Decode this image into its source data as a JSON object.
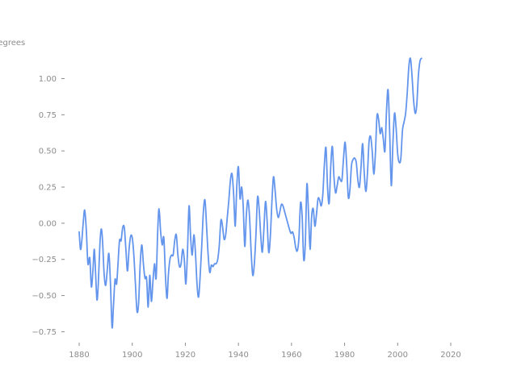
{
  "chart_data": {
    "type": "line",
    "title": "",
    "xlabel": "",
    "ylabel": "degrees",
    "xlim": [
      1873,
      2027
    ],
    "ylim": [
      -0.82,
      1.22
    ],
    "grid": false,
    "x_ticks": [
      1880,
      1900,
      1920,
      1940,
      1960,
      1980,
      2000,
      2020
    ],
    "y_ticks": [
      -0.75,
      -0.5,
      -0.25,
      0.0,
      0.25,
      0.5,
      0.75,
      1.0
    ],
    "y_tick_labels": [
      "−0.75",
      "−0.50",
      "−0.25",
      "0.00",
      "0.25",
      "0.50",
      "0.75",
      "1.00"
    ],
    "colors": {
      "line": "#6495ed",
      "axis": "#8c8c8c"
    },
    "series": [
      {
        "values": [
          [
            1880.0,
            -0.06
          ],
          [
            1880.5,
            -0.18
          ],
          [
            1881.0,
            -0.12
          ],
          [
            1881.6,
            0.02
          ],
          [
            1882.1,
            0.09
          ],
          [
            1882.7,
            -0.05
          ],
          [
            1883.3,
            -0.28
          ],
          [
            1884.0,
            -0.24
          ],
          [
            1884.6,
            -0.44
          ],
          [
            1885.2,
            -0.32
          ],
          [
            1885.7,
            -0.18
          ],
          [
            1886.2,
            -0.35
          ],
          [
            1886.7,
            -0.53
          ],
          [
            1887.2,
            -0.42
          ],
          [
            1887.8,
            -0.15
          ],
          [
            1888.3,
            -0.04
          ],
          [
            1888.8,
            -0.12
          ],
          [
            1889.4,
            -0.35
          ],
          [
            1890.0,
            -0.43
          ],
          [
            1890.6,
            -0.32
          ],
          [
            1891.2,
            -0.21
          ],
          [
            1891.8,
            -0.42
          ],
          [
            1892.4,
            -0.72
          ],
          [
            1892.9,
            -0.58
          ],
          [
            1893.5,
            -0.39
          ],
          [
            1894.1,
            -0.42
          ],
          [
            1894.6,
            -0.29
          ],
          [
            1895.2,
            -0.12
          ],
          [
            1895.8,
            -0.12
          ],
          [
            1896.4,
            -0.03
          ],
          [
            1897.0,
            -0.03
          ],
          [
            1897.6,
            -0.18
          ],
          [
            1898.2,
            -0.33
          ],
          [
            1898.8,
            -0.18
          ],
          [
            1899.4,
            -0.09
          ],
          [
            1900.0,
            -0.1
          ],
          [
            1900.6,
            -0.22
          ],
          [
            1901.2,
            -0.42
          ],
          [
            1901.8,
            -0.61
          ],
          [
            1902.4,
            -0.55
          ],
          [
            1903.0,
            -0.28
          ],
          [
            1903.6,
            -0.15
          ],
          [
            1904.2,
            -0.28
          ],
          [
            1904.8,
            -0.38
          ],
          [
            1905.4,
            -0.38
          ],
          [
            1906.0,
            -0.58
          ],
          [
            1906.6,
            -0.36
          ],
          [
            1907.2,
            -0.54
          ],
          [
            1907.8,
            -0.4
          ],
          [
            1908.4,
            -0.28
          ],
          [
            1909.0,
            -0.38
          ],
          [
            1909.6,
            -0.05
          ],
          [
            1910.1,
            0.1
          ],
          [
            1910.7,
            -0.06
          ],
          [
            1911.3,
            -0.15
          ],
          [
            1911.9,
            -0.1
          ],
          [
            1912.5,
            -0.36
          ],
          [
            1913.1,
            -0.52
          ],
          [
            1913.6,
            -0.36
          ],
          [
            1914.2,
            -0.25
          ],
          [
            1914.8,
            -0.22
          ],
          [
            1915.4,
            -0.22
          ],
          [
            1916.0,
            -0.12
          ],
          [
            1916.6,
            -0.08
          ],
          [
            1917.2,
            -0.22
          ],
          [
            1917.8,
            -0.3
          ],
          [
            1918.4,
            -0.28
          ],
          [
            1919.0,
            -0.18
          ],
          [
            1919.6,
            -0.25
          ],
          [
            1920.2,
            -0.42
          ],
          [
            1920.8,
            -0.2
          ],
          [
            1921.4,
            0.12
          ],
          [
            1922.0,
            -0.1
          ],
          [
            1922.6,
            -0.22
          ],
          [
            1923.2,
            -0.08
          ],
          [
            1923.8,
            -0.2
          ],
          [
            1924.4,
            -0.42
          ],
          [
            1925.0,
            -0.51
          ],
          [
            1925.6,
            -0.36
          ],
          [
            1926.2,
            -0.15
          ],
          [
            1926.8,
            0.08
          ],
          [
            1927.4,
            0.16
          ],
          [
            1928.0,
            -0.02
          ],
          [
            1928.6,
            -0.22
          ],
          [
            1929.2,
            -0.34
          ],
          [
            1929.8,
            -0.29
          ],
          [
            1930.4,
            -0.3
          ],
          [
            1931.0,
            -0.28
          ],
          [
            1931.6,
            -0.28
          ],
          [
            1932.2,
            -0.25
          ],
          [
            1932.8,
            -0.15
          ],
          [
            1933.4,
            0.02
          ],
          [
            1934.0,
            -0.02
          ],
          [
            1934.6,
            -0.11
          ],
          [
            1935.2,
            -0.08
          ],
          [
            1935.8,
            0.04
          ],
          [
            1936.4,
            0.16
          ],
          [
            1937.0,
            0.3
          ],
          [
            1937.6,
            0.34
          ],
          [
            1938.2,
            0.2
          ],
          [
            1938.8,
            -0.02
          ],
          [
            1939.4,
            0.26
          ],
          [
            1940.0,
            0.39
          ],
          [
            1940.6,
            0.17
          ],
          [
            1941.2,
            0.25
          ],
          [
            1941.8,
            0.12
          ],
          [
            1942.4,
            -0.16
          ],
          [
            1943.0,
            0.06
          ],
          [
            1943.6,
            0.16
          ],
          [
            1944.2,
            0.04
          ],
          [
            1944.8,
            -0.2
          ],
          [
            1945.4,
            -0.36
          ],
          [
            1946.0,
            -0.28
          ],
          [
            1946.6,
            -0.08
          ],
          [
            1947.2,
            0.18
          ],
          [
            1947.8,
            0.1
          ],
          [
            1948.4,
            -0.08
          ],
          [
            1949.0,
            -0.2
          ],
          [
            1949.6,
            -0.04
          ],
          [
            1950.2,
            0.15
          ],
          [
            1950.8,
            0.02
          ],
          [
            1951.4,
            -0.2
          ],
          [
            1952.0,
            -0.1
          ],
          [
            1952.6,
            0.14
          ],
          [
            1953.2,
            0.32
          ],
          [
            1953.8,
            0.23
          ],
          [
            1954.4,
            0.1
          ],
          [
            1955.0,
            0.04
          ],
          [
            1955.6,
            0.08
          ],
          [
            1956.2,
            0.13
          ],
          [
            1956.8,
            0.12
          ],
          [
            1957.4,
            0.08
          ],
          [
            1958.0,
            0.04
          ],
          [
            1958.6,
            0.0
          ],
          [
            1959.2,
            -0.04
          ],
          [
            1959.8,
            -0.07
          ],
          [
            1960.4,
            -0.06
          ],
          [
            1961.0,
            -0.1
          ],
          [
            1961.6,
            -0.17
          ],
          [
            1962.2,
            -0.19
          ],
          [
            1962.8,
            -0.1
          ],
          [
            1963.4,
            0.14
          ],
          [
            1964.0,
            0.05
          ],
          [
            1964.6,
            -0.25
          ],
          [
            1965.2,
            -0.14
          ],
          [
            1965.8,
            0.27
          ],
          [
            1966.4,
            0.07
          ],
          [
            1967.0,
            -0.18
          ],
          [
            1967.6,
            0.05
          ],
          [
            1968.2,
            0.1
          ],
          [
            1968.8,
            -0.02
          ],
          [
            1969.4,
            0.06
          ],
          [
            1970.0,
            0.17
          ],
          [
            1970.6,
            0.16
          ],
          [
            1971.2,
            0.12
          ],
          [
            1971.8,
            0.2
          ],
          [
            1972.4,
            0.41
          ],
          [
            1973.0,
            0.52
          ],
          [
            1973.6,
            0.24
          ],
          [
            1974.2,
            0.14
          ],
          [
            1974.8,
            0.4
          ],
          [
            1975.4,
            0.53
          ],
          [
            1976.0,
            0.32
          ],
          [
            1976.6,
            0.21
          ],
          [
            1977.2,
            0.26
          ],
          [
            1977.8,
            0.32
          ],
          [
            1978.4,
            0.3
          ],
          [
            1979.0,
            0.3
          ],
          [
            1979.6,
            0.45
          ],
          [
            1980.2,
            0.56
          ],
          [
            1980.8,
            0.4
          ],
          [
            1981.4,
            0.18
          ],
          [
            1982.0,
            0.23
          ],
          [
            1982.6,
            0.4
          ],
          [
            1983.2,
            0.44
          ],
          [
            1983.8,
            0.45
          ],
          [
            1984.4,
            0.42
          ],
          [
            1985.0,
            0.3
          ],
          [
            1985.6,
            0.25
          ],
          [
            1986.2,
            0.39
          ],
          [
            1986.8,
            0.55
          ],
          [
            1987.4,
            0.35
          ],
          [
            1988.0,
            0.22
          ],
          [
            1988.6,
            0.34
          ],
          [
            1989.2,
            0.56
          ],
          [
            1989.8,
            0.6
          ],
          [
            1990.4,
            0.5
          ],
          [
            1991.0,
            0.34
          ],
          [
            1991.6,
            0.48
          ],
          [
            1992.2,
            0.74
          ],
          [
            1992.8,
            0.72
          ],
          [
            1993.4,
            0.62
          ],
          [
            1994.0,
            0.66
          ],
          [
            1994.6,
            0.58
          ],
          [
            1995.2,
            0.5
          ],
          [
            1995.8,
            0.78
          ],
          [
            1996.4,
            0.92
          ],
          [
            1997.0,
            0.62
          ],
          [
            1997.6,
            0.26
          ],
          [
            1998.2,
            0.55
          ],
          [
            1998.8,
            0.76
          ],
          [
            1999.4,
            0.66
          ],
          [
            2000.0,
            0.48
          ],
          [
            2000.6,
            0.42
          ],
          [
            2001.2,
            0.45
          ],
          [
            2001.8,
            0.64
          ],
          [
            2002.4,
            0.7
          ],
          [
            2003.0,
            0.76
          ],
          [
            2003.6,
            0.9
          ],
          [
            2004.2,
            1.08
          ],
          [
            2004.8,
            1.14
          ],
          [
            2005.4,
            1.02
          ],
          [
            2006.0,
            0.85
          ],
          [
            2006.6,
            0.76
          ],
          [
            2007.2,
            0.82
          ],
          [
            2007.8,
            1.02
          ],
          [
            2008.4,
            1.12
          ],
          [
            2009.0,
            1.14
          ]
        ]
      }
    ]
  }
}
